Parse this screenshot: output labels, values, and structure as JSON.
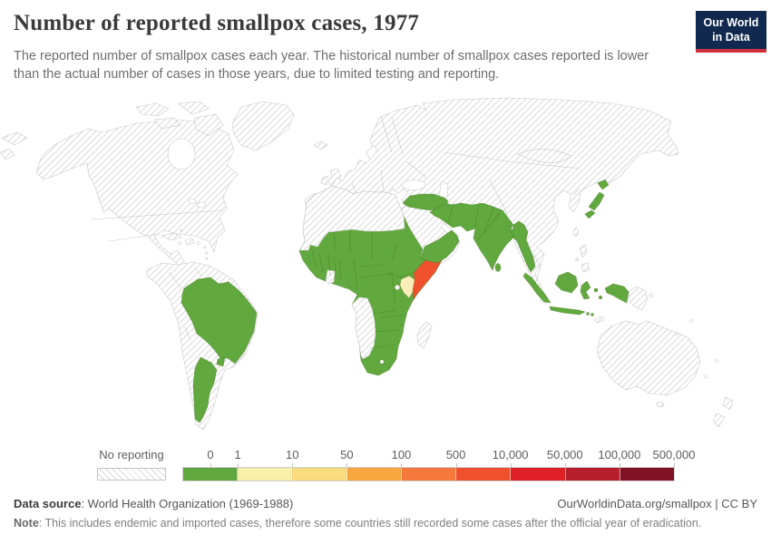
{
  "header": {
    "title": "Number of reported smallpox cases, 1977",
    "subtitle": "The reported number of smallpox cases each year. The historical number of smallpox cases reported is lower than the actual number of cases in those years, due to limited testing and reporting.",
    "logo": {
      "line1": "Our World",
      "line2": "in Data"
    }
  },
  "theme": {
    "green": "#61A83E",
    "cream": "#FAF0A9",
    "kenya": "#F9EDB9",
    "red": "#F0512D",
    "green-border": "#42701F",
    "hatch-border": "#c9c9c9",
    "hatch-line": "#dcdcdc",
    "logo-bg": "#12294f",
    "logo-accent": "#cf303e"
  },
  "legend": {
    "no_reporting_label": "No reporting",
    "colors": [
      "#61A83E",
      "#FAF0A9",
      "#FBDC7E",
      "#F8A63F",
      "#F5793B",
      "#F0512D",
      "#DF2027",
      "#B61F2B",
      "#811225"
    ],
    "tick_labels": [
      "0",
      "1",
      "10",
      "50",
      "100",
      "500",
      "10,000",
      "50,000",
      "100,000",
      "500,000"
    ]
  },
  "footer": {
    "source_label": "Data source",
    "source_text": ": World Health Organization (1969-1988)",
    "link_text": "OurWorldinData.org/smallpox | CC BY",
    "note_label": "Note",
    "note_text": ": This includes endemic and imported cases, therefore some countries still recorded some cases after the official year of eradication."
  },
  "chart_data": {
    "type": "choropleth_map",
    "title": "Number of reported smallpox cases, 1977",
    "legend_bins": [
      "0",
      "1–10",
      "10–50",
      "50–100",
      "100–500",
      "500–10,000",
      "10,000–50,000",
      "50,000–100,000",
      "100,000–500,000"
    ],
    "no_data_label": "No reporting",
    "regions_depicted": {
      "zero_cases": [
        "Brazil",
        "Argentina",
        "Uruguay",
        "Sub-Saharan Africa (most countries)",
        "Turkey",
        "Iraq",
        "Iran",
        "Afghanistan",
        "Pakistan",
        "India",
        "Sri Lanka",
        "Bangladesh",
        "Myanmar",
        "Yemen",
        "Oman",
        "Japan",
        "Indonesia",
        "Western New Guinea",
        "Ethiopia",
        "Sudan",
        "West Africa (most)",
        "Southern Africa (most)"
      ],
      "bin_1_10": [
        "Kenya"
      ],
      "bin_500_10000": [
        "Somalia"
      ],
      "no_reporting": [
        "United States",
        "Canada",
        "Greenland",
        "Mexico",
        "Central America",
        "Caribbean",
        "Colombia",
        "Venezuela",
        "Peru",
        "Bolivia",
        "Paraguay",
        "Chile",
        "Europe",
        "USSR",
        "China",
        "Korea",
        "Southeast Asia",
        "Philippines",
        "Papua New Guinea",
        "Australia",
        "New Zealand",
        "North Africa",
        "Mauritania",
        "Senegal",
        "Ghana",
        "Gabon",
        "Congo",
        "Angola",
        "Namibia",
        "Madagascar",
        "Saudi Arabia",
        "Levant"
      ]
    }
  }
}
